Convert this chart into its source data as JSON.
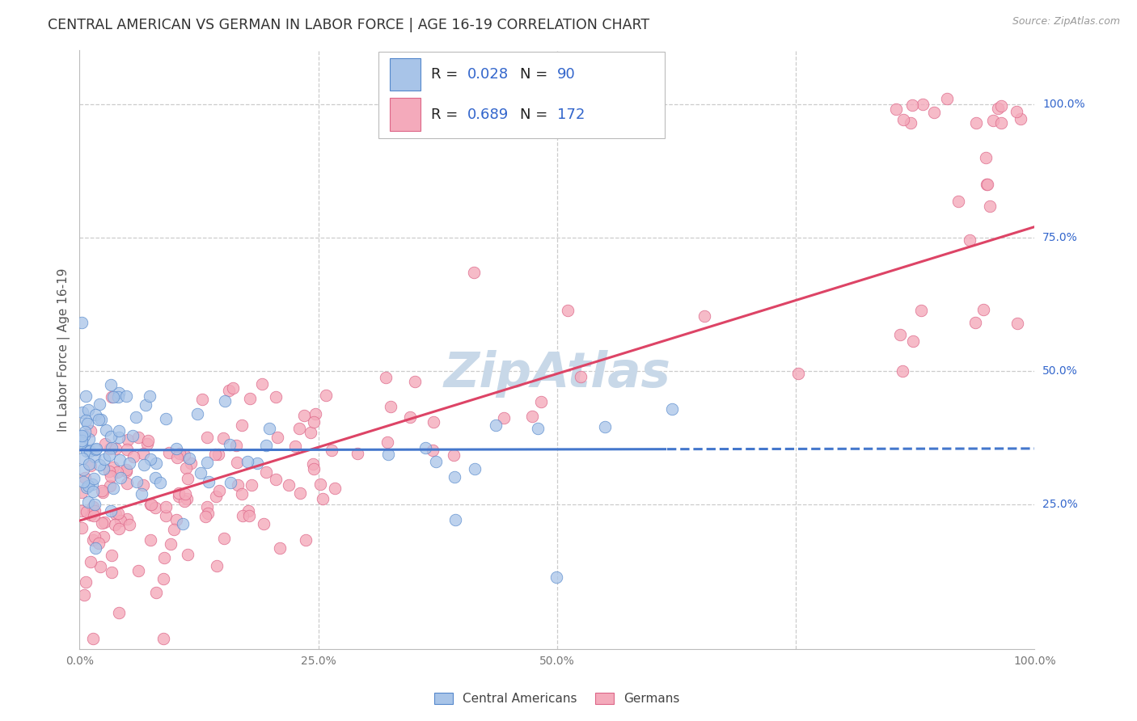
{
  "title": "CENTRAL AMERICAN VS GERMAN IN LABOR FORCE | AGE 16-19 CORRELATION CHART",
  "source": "Source: ZipAtlas.com",
  "ylabel": "In Labor Force | Age 16-19",
  "xlim": [
    0,
    1.0
  ],
  "ylim": [
    -0.02,
    1.1
  ],
  "blue_R": 0.028,
  "blue_N": 90,
  "pink_R": 0.689,
  "pink_N": 172,
  "blue_fill": "#A8C4E8",
  "blue_edge": "#5588CC",
  "pink_fill": "#F4AABB",
  "pink_edge": "#DD6688",
  "blue_line": "#4477CC",
  "pink_line": "#DD4466",
  "number_color": "#3366CC",
  "watermark_color": "#C8D8E8",
  "grid_color": "#CCCCCC",
  "right_label_color": "#3366CC",
  "background": "#FFFFFF",
  "title_color": "#333333",
  "ylabel_color": "#555555",
  "tick_color": "#777777",
  "blue_line_solid_end": 0.615,
  "pink_line_start_y": 0.22,
  "pink_line_end_y": 0.77,
  "blue_line_y": 0.355
}
